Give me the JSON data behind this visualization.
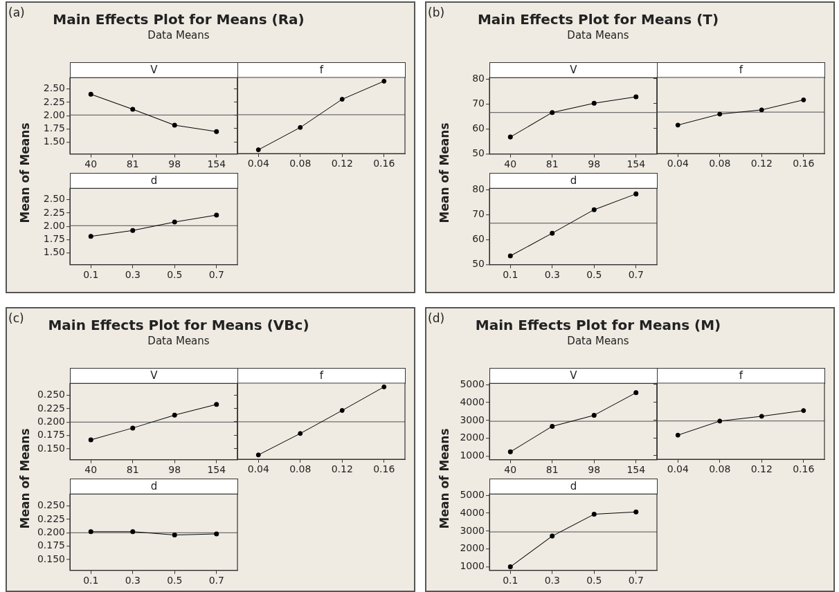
{
  "chart_data": [
    {
      "type": "line",
      "title": "V",
      "ylabel": "Mean of Means",
      "annotations": [
        "(a)",
        "Main Effects Plot for Means (Ra)",
        "Data Means"
      ],
      "categories": [
        "40",
        "81",
        "98",
        "154"
      ],
      "values": [
        2.4,
        2.12,
        1.82,
        1.7
      ],
      "color": "#000000",
      "marker": "circle",
      "ylim": [
        1.28,
        2.71
      ],
      "yticks": [
        {
          "value": 1.5,
          "label": "1.50"
        },
        {
          "value": 1.75,
          "label": "1.75"
        },
        {
          "value": 2,
          "label": "2.00"
        },
        {
          "value": 2.25,
          "label": "2.25"
        },
        {
          "value": 2.5,
          "label": "2.50"
        }
      ],
      "ref_lines": [
        {
          "axis": "y",
          "value": 2.01,
          "color": "#6e6e6e"
        }
      ]
    },
    {
      "type": "line",
      "title": "f",
      "categories": [
        "0.04",
        "0.08",
        "0.12",
        "0.16"
      ],
      "values": [
        1.35,
        1.77,
        2.3,
        2.64
      ],
      "color": "#000000",
      "marker": "circle",
      "ylim": [
        1.28,
        2.71
      ],
      "yticks": [
        1.5,
        1.75,
        2,
        2.25,
        2.5
      ],
      "tick_labels": "x",
      "ref_lines": [
        {
          "axis": "y",
          "value": 2.01,
          "color": "#6e6e6e"
        }
      ]
    },
    {
      "type": "line",
      "title": "d",
      "categories": [
        "0.1",
        "0.3",
        "0.5",
        "0.7"
      ],
      "values": [
        1.81,
        1.92,
        2.08,
        2.21
      ],
      "color": "#000000",
      "marker": "circle",
      "ylim": [
        1.28,
        2.71
      ],
      "yticks": [
        {
          "value": 1.5,
          "label": "1.50"
        },
        {
          "value": 1.75,
          "label": "1.75"
        },
        {
          "value": 2,
          "label": "2.00"
        },
        {
          "value": 2.25,
          "label": "2.25"
        },
        {
          "value": 2.5,
          "label": "2.50"
        }
      ],
      "ref_lines": [
        {
          "axis": "y",
          "value": 2.01,
          "color": "#6e6e6e"
        }
      ]
    },
    {
      "type": "line",
      "title": "V",
      "ylabel": "Mean of Means",
      "annotations": [
        "(b)",
        "Main Effects Plot for Means (T)",
        "Data Means"
      ],
      "categories": [
        "40",
        "81",
        "98",
        "154"
      ],
      "values": [
        56.8,
        66.6,
        70.3,
        72.9
      ],
      "color": "#000000",
      "marker": "circle",
      "ylim": [
        50,
        80.5
      ],
      "yticks": [
        50,
        60,
        70,
        80
      ],
      "ref_lines": [
        {
          "axis": "y",
          "value": 66.6,
          "color": "#6e6e6e"
        }
      ]
    },
    {
      "type": "line",
      "title": "f",
      "categories": [
        "0.04",
        "0.08",
        "0.12",
        "0.16"
      ],
      "values": [
        61.4,
        65.8,
        67.5,
        71.5
      ],
      "color": "#000000",
      "marker": "circle",
      "ylim": [
        50,
        80.5
      ],
      "yticks": [
        50,
        60,
        70,
        80
      ],
      "tick_labels": "x",
      "ref_lines": [
        {
          "axis": "y",
          "value": 66.6,
          "color": "#6e6e6e"
        }
      ]
    },
    {
      "type": "line",
      "title": "d",
      "categories": [
        "0.1",
        "0.3",
        "0.5",
        "0.7"
      ],
      "values": [
        53.5,
        62.6,
        72.0,
        78.3
      ],
      "color": "#000000",
      "marker": "circle",
      "ylim": [
        50,
        80.5
      ],
      "yticks": [
        50,
        60,
        70,
        80
      ],
      "ref_lines": [
        {
          "axis": "y",
          "value": 66.6,
          "color": "#6e6e6e"
        }
      ]
    },
    {
      "type": "line",
      "title": "V",
      "ylabel": "Mean of Means",
      "annotations": [
        "(c)",
        "Main Effects Plot for Means (VBc)",
        "Data Means"
      ],
      "categories": [
        "40",
        "81",
        "98",
        "154"
      ],
      "values": [
        0.167,
        0.189,
        0.213,
        0.233
      ],
      "color": "#000000",
      "marker": "circle",
      "ylim": [
        0.13,
        0.272
      ],
      "yticks": [
        {
          "value": 0.15,
          "label": "0.150"
        },
        {
          "value": 0.175,
          "label": "0.175"
        },
        {
          "value": 0.2,
          "label": "0.200"
        },
        {
          "value": 0.225,
          "label": "0.225"
        },
        {
          "value": 0.25,
          "label": "0.250"
        }
      ],
      "ref_lines": [
        {
          "axis": "y",
          "value": 0.2,
          "color": "#6e6e6e"
        }
      ]
    },
    {
      "type": "line",
      "title": "f",
      "categories": [
        "0.04",
        "0.08",
        "0.12",
        "0.16"
      ],
      "values": [
        0.138,
        0.178,
        0.221,
        0.265
      ],
      "color": "#000000",
      "marker": "circle",
      "ylim": [
        0.13,
        0.272
      ],
      "yticks": [
        0.15,
        0.175,
        0.2,
        0.225,
        0.25
      ],
      "tick_labels": "x",
      "ref_lines": [
        {
          "axis": "y",
          "value": 0.2,
          "color": "#6e6e6e"
        }
      ]
    },
    {
      "type": "line",
      "title": "d",
      "categories": [
        "0.1",
        "0.3",
        "0.5",
        "0.7"
      ],
      "values": [
        0.202,
        0.202,
        0.196,
        0.198
      ],
      "color": "#000000",
      "marker": "circle",
      "ylim": [
        0.13,
        0.272
      ],
      "yticks": [
        {
          "value": 0.15,
          "label": "0.150"
        },
        {
          "value": 0.175,
          "label": "0.175"
        },
        {
          "value": 0.2,
          "label": "0.200"
        },
        {
          "value": 0.225,
          "label": "0.225"
        },
        {
          "value": 0.25,
          "label": "0.250"
        }
      ],
      "ref_lines": [
        {
          "axis": "y",
          "value": 0.2,
          "color": "#6e6e6e"
        }
      ]
    },
    {
      "type": "line",
      "title": "V",
      "ylabel": "Mean of Means",
      "annotations": [
        "(d)",
        "Main Effects Plot for Means (M)",
        "Data Means"
      ],
      "categories": [
        "40",
        "81",
        "98",
        "154"
      ],
      "values": [
        1240,
        2670,
        3290,
        4550
      ],
      "color": "#000000",
      "marker": "circle",
      "ylim": [
        800,
        5070
      ],
      "yticks": [
        1000,
        2000,
        3000,
        4000,
        5000
      ],
      "ref_lines": [
        {
          "axis": "y",
          "value": 2950,
          "color": "#6e6e6e"
        }
      ]
    },
    {
      "type": "line",
      "title": "f",
      "categories": [
        "0.04",
        "0.08",
        "0.12",
        "0.16"
      ],
      "values": [
        2150,
        2940,
        3210,
        3530
      ],
      "color": "#000000",
      "marker": "circle",
      "ylim": [
        800,
        5070
      ],
      "yticks": [
        1000,
        2000,
        3000,
        4000,
        5000
      ],
      "tick_labels": "x",
      "ref_lines": [
        {
          "axis": "y",
          "value": 2950,
          "color": "#6e6e6e"
        }
      ]
    },
    {
      "type": "line",
      "title": "d",
      "categories": [
        "0.1",
        "0.3",
        "0.5",
        "0.7"
      ],
      "values": [
        1000,
        2720,
        3940,
        4070
      ],
      "color": "#000000",
      "marker": "circle",
      "ylim": [
        800,
        5070
      ],
      "yticks": [
        1000,
        2000,
        3000,
        4000,
        5000
      ],
      "ref_lines": [
        {
          "axis": "y",
          "value": 2950,
          "color": "#6e6e6e"
        }
      ]
    }
  ]
}
